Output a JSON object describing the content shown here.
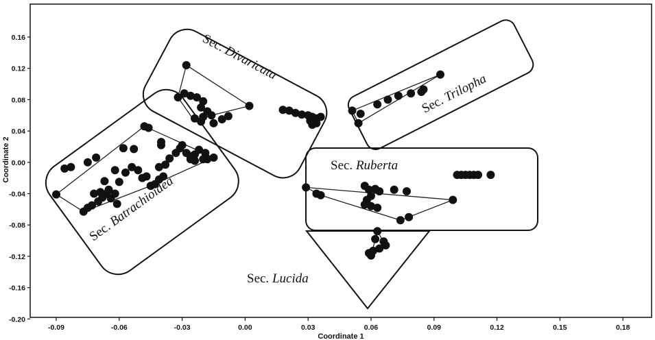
{
  "chart_data": {
    "type": "scatter",
    "title": "",
    "xlabel": "Coordinate 1",
    "ylabel": "Coordinate 2",
    "xlim": [
      -0.1,
      0.21
    ],
    "ylim": [
      -0.2,
      0.19
    ],
    "xticks": [
      -0.09,
      -0.06,
      -0.03,
      0.0,
      0.03,
      0.06,
      0.09,
      0.12,
      0.15,
      0.18
    ],
    "xtick_labels": [
      "-0.09",
      "-0.06",
      "-0.03",
      "0.00",
      "0.03",
      "0.06",
      "0.09",
      "0.12",
      "0.15",
      "0.18"
    ],
    "yticks": [
      0.16,
      0.12,
      0.08,
      0.04,
      0.0,
      -0.04,
      -0.08,
      -0.12,
      -0.16,
      -0.2
    ],
    "ytick_labels": [
      "0.16",
      "0.12",
      "0.08",
      "0.04",
      "0.00",
      "-0.04",
      "-0.08",
      "-0.12",
      "-0.16",
      "-0.20"
    ],
    "grid": false,
    "legend": "none",
    "marker_color": "#111111",
    "groups": [
      {
        "prefix": "Sec.",
        "name": "Divaricata",
        "shape": "rounded-rect",
        "points": [
          [
            -0.028,
            0.124
          ],
          [
            -0.032,
            0.083
          ],
          [
            -0.029,
            0.088
          ],
          [
            -0.026,
            0.085
          ],
          [
            -0.023,
            0.083
          ],
          [
            -0.02,
            0.078
          ],
          [
            -0.021,
            0.07
          ],
          [
            -0.018,
            0.065
          ],
          [
            -0.016,
            0.06
          ],
          [
            -0.02,
            0.058
          ],
          [
            -0.024,
            0.056
          ],
          [
            -0.021,
            0.052
          ],
          [
            -0.015,
            0.05
          ],
          [
            -0.011,
            0.055
          ],
          [
            -0.008,
            0.059
          ],
          [
            0.002,
            0.072
          ],
          [
            0.018,
            0.067
          ],
          [
            0.021,
            0.066
          ],
          [
            0.024,
            0.063
          ],
          [
            0.027,
            0.061
          ],
          [
            0.03,
            0.06
          ],
          [
            0.032,
            0.058
          ],
          [
            0.034,
            0.056
          ],
          [
            0.036,
            0.058
          ],
          [
            0.031,
            0.053
          ],
          [
            0.034,
            0.05
          ],
          [
            0.032,
            0.048
          ]
        ],
        "hull": [
          [
            -0.028,
            0.124
          ],
          [
            0.002,
            0.072
          ],
          [
            -0.016,
            0.06
          ],
          [
            -0.024,
            0.052
          ],
          [
            -0.032,
            0.083
          ]
        ]
      },
      {
        "prefix": "Sec.",
        "name": "Trilopha",
        "shape": "rounded-rect",
        "points": [
          [
            0.051,
            0.066
          ],
          [
            0.055,
            0.062
          ],
          [
            0.054,
            0.05
          ],
          [
            0.063,
            0.074
          ],
          [
            0.068,
            0.08
          ],
          [
            0.073,
            0.085
          ],
          [
            0.079,
            0.088
          ],
          [
            0.085,
            0.093
          ],
          [
            0.084,
            0.09
          ],
          [
            0.093,
            0.112
          ]
        ],
        "hull": [
          [
            0.093,
            0.112
          ],
          [
            0.054,
            0.05
          ],
          [
            0.051,
            0.066
          ]
        ]
      },
      {
        "prefix": "Sec.",
        "name": "Batrachioidea",
        "shape": "rounded-rect",
        "points": [
          [
            -0.09,
            -0.041
          ],
          [
            -0.086,
            -0.008
          ],
          [
            -0.083,
            -0.006
          ],
          [
            -0.077,
            -0.063
          ],
          [
            -0.075,
            -0.058
          ],
          [
            -0.073,
            -0.055
          ],
          [
            -0.07,
            -0.05
          ],
          [
            -0.068,
            -0.045
          ],
          [
            -0.066,
            -0.04
          ],
          [
            -0.065,
            -0.035
          ],
          [
            -0.064,
            -0.046
          ],
          [
            -0.062,
            -0.04
          ],
          [
            -0.061,
            -0.053
          ],
          [
            -0.069,
            -0.038
          ],
          [
            -0.072,
            -0.04
          ],
          [
            -0.067,
            -0.024
          ],
          [
            -0.062,
            -0.01
          ],
          [
            -0.06,
            -0.025
          ],
          [
            -0.057,
            -0.013
          ],
          [
            -0.054,
            -0.006
          ],
          [
            -0.051,
            -0.01
          ],
          [
            -0.049,
            -0.02
          ],
          [
            -0.047,
            -0.018
          ],
          [
            -0.045,
            -0.03
          ],
          [
            -0.043,
            -0.028
          ],
          [
            -0.041,
            -0.022
          ],
          [
            -0.039,
            -0.018
          ],
          [
            -0.041,
            -0.006
          ],
          [
            -0.038,
            -0.003
          ],
          [
            -0.036,
            0.005
          ],
          [
            -0.033,
            0.012
          ],
          [
            -0.031,
            0.018
          ],
          [
            -0.028,
            0.012
          ],
          [
            -0.026,
            0.008
          ],
          [
            -0.024,
            0.01
          ],
          [
            -0.022,
            0.016
          ],
          [
            -0.019,
            0.012
          ],
          [
            -0.02,
            0.004
          ],
          [
            -0.024,
            0.002
          ],
          [
            -0.026,
            0.004
          ],
          [
            -0.018,
            0.004
          ],
          [
            -0.015,
            0.006
          ],
          [
            -0.048,
            0.046
          ],
          [
            -0.046,
            0.044
          ],
          [
            -0.04,
            0.026
          ],
          [
            -0.04,
            0.022
          ],
          [
            -0.03,
            0.022
          ],
          [
            -0.053,
            0.017
          ],
          [
            -0.058,
            0.018
          ],
          [
            -0.071,
            0.006
          ],
          [
            -0.075,
            0.0
          ]
        ],
        "hull": [
          [
            -0.09,
            -0.041
          ],
          [
            -0.048,
            0.046
          ],
          [
            -0.015,
            0.006
          ],
          [
            -0.045,
            -0.03
          ],
          [
            -0.077,
            -0.063
          ]
        ]
      },
      {
        "prefix": "Sec.",
        "name": "Ruberta",
        "shape": "rounded-rect",
        "points": [
          [
            0.029,
            -0.032
          ],
          [
            0.034,
            -0.04
          ],
          [
            0.036,
            -0.042
          ],
          [
            0.057,
            -0.03
          ],
          [
            0.059,
            -0.035
          ],
          [
            0.062,
            -0.034
          ],
          [
            0.064,
            -0.037
          ],
          [
            0.06,
            -0.043
          ],
          [
            0.058,
            -0.048
          ],
          [
            0.057,
            -0.054
          ],
          [
            0.06,
            -0.056
          ],
          [
            0.063,
            -0.058
          ],
          [
            0.071,
            -0.035
          ],
          [
            0.077,
            -0.037
          ],
          [
            0.074,
            -0.074
          ],
          [
            0.078,
            -0.07
          ],
          [
            0.099,
            -0.048
          ],
          [
            0.101,
            -0.016
          ],
          [
            0.103,
            -0.016
          ],
          [
            0.105,
            -0.016
          ],
          [
            0.107,
            -0.016
          ],
          [
            0.109,
            -0.016
          ],
          [
            0.111,
            -0.016
          ],
          [
            0.117,
            -0.016
          ]
        ],
        "hull": [
          [
            0.029,
            -0.032
          ],
          [
            0.099,
            -0.048
          ],
          [
            0.074,
            -0.074
          ],
          [
            0.036,
            -0.042
          ]
        ]
      },
      {
        "prefix": "Sec.",
        "name": "Lucida",
        "shape": "triangle",
        "points": [
          [
            0.063,
            -0.088
          ],
          [
            0.062,
            -0.098
          ],
          [
            0.066,
            -0.101
          ],
          [
            0.067,
            -0.106
          ],
          [
            0.064,
            -0.11
          ],
          [
            0.061,
            -0.113
          ],
          [
            0.059,
            -0.116
          ],
          [
            0.06,
            -0.119
          ]
        ],
        "hull": [
          [
            0.063,
            -0.088
          ],
          [
            0.067,
            -0.106
          ],
          [
            0.059,
            -0.116
          ],
          [
            0.06,
            -0.119
          ]
        ]
      }
    ]
  }
}
